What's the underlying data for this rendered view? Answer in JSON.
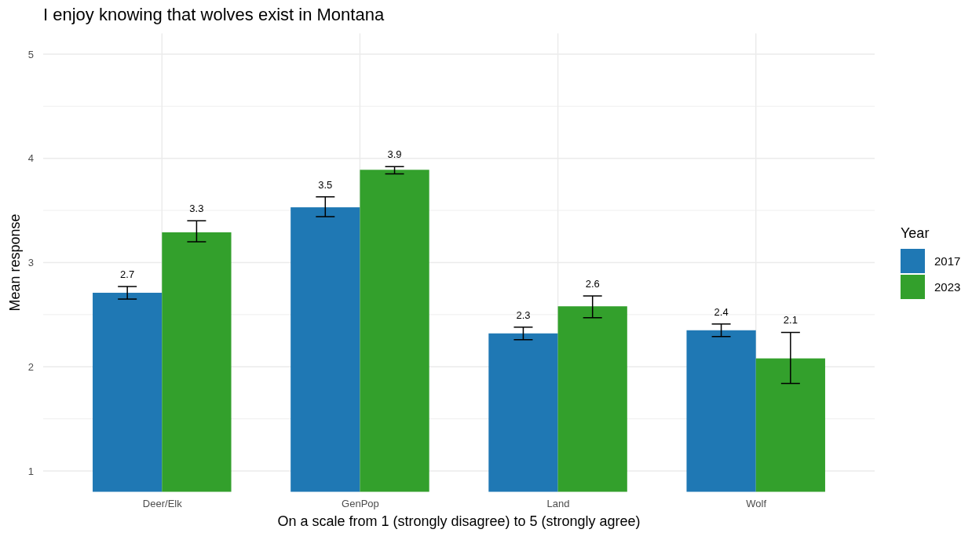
{
  "chart_data": {
    "type": "bar",
    "title": "I enjoy knowing that wolves exist in Montana",
    "xlabel": "On a scale from 1 (strongly disagree) to 5 (strongly agree)",
    "ylabel": "Mean response",
    "legend_title": "Year",
    "legend": "right",
    "grid": true,
    "categories": [
      "Deer/Elk",
      "GenPop",
      "Land",
      "Wolf"
    ],
    "ylim": [
      0.8,
      5.2
    ],
    "yticks": [
      1,
      {
        "value": 1.5,
        "label": null
      },
      2,
      {
        "value": 2.5,
        "label": null
      },
      3,
      {
        "value": 3.5,
        "label": null
      },
      4,
      {
        "value": 4.5,
        "label": null
      },
      5
    ],
    "series": [
      {
        "name": "2017",
        "color": "#1f78b4",
        "values": [
          2.71,
          3.53,
          2.32,
          2.35
        ],
        "errors": [
          [
            2.65,
            2.77
          ],
          [
            3.44,
            3.63
          ],
          [
            2.26,
            2.38
          ],
          [
            2.29,
            2.41
          ]
        ],
        "value_labels": [
          "2.7",
          "3.5",
          "2.3",
          "2.4"
        ]
      },
      {
        "name": "2023",
        "color": "#33a02c",
        "values": [
          3.29,
          3.89,
          2.58,
          2.08
        ],
        "errors": [
          [
            3.2,
            3.4
          ],
          [
            3.85,
            3.92
          ],
          [
            2.47,
            2.68
          ],
          [
            1.84,
            2.33
          ]
        ],
        "value_labels": [
          "3.3",
          "3.9",
          "2.6",
          "2.1"
        ]
      }
    ]
  }
}
